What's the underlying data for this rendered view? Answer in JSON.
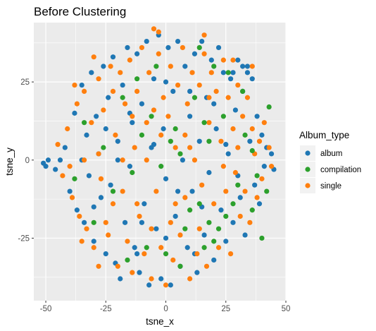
{
  "chart_data": {
    "type": "scatter",
    "title": "Before Clustering",
    "xlabel": "tsne_x",
    "ylabel": "tsne_y",
    "xlim": [
      -55,
      50
    ],
    "ylim": [
      -45,
      44
    ],
    "x_ticks": [
      -50,
      -25,
      0,
      25,
      50
    ],
    "x_tick_labels": [
      "-50",
      "-25",
      "0",
      "25",
      "50"
    ],
    "y_ticks": [
      -25,
      0,
      25
    ],
    "y_tick_labels": [
      "-25",
      "0",
      "25"
    ],
    "grid": true,
    "panel_background": "#ebebeb",
    "gridline_color": "#ffffff",
    "legend": {
      "title": "Album_type",
      "placement": "right",
      "entries": [
        "album",
        "compilation",
        "single"
      ]
    },
    "series": [
      {
        "name": "album",
        "color": "#1f77b4",
        "values": [
          [
            -51,
            -1
          ],
          [
            -50,
            -2
          ],
          [
            -49,
            0
          ],
          [
            -46,
            -3
          ],
          [
            -44,
            0
          ],
          [
            -42,
            4
          ],
          [
            -40,
            -10
          ],
          [
            -38,
            15
          ],
          [
            -37,
            -16
          ],
          [
            -35,
            24
          ],
          [
            -34,
            -20
          ],
          [
            -33,
            8
          ],
          [
            -32,
            -5
          ],
          [
            -31,
            28
          ],
          [
            -30,
            -26
          ],
          [
            -29,
            14
          ],
          [
            -28,
            2
          ],
          [
            -27,
            -12
          ],
          [
            -26,
            30
          ],
          [
            -25,
            -30
          ],
          [
            -24,
            20
          ],
          [
            -23,
            -8
          ],
          [
            -22,
            33
          ],
          [
            -21,
            -33
          ],
          [
            -20,
            6
          ],
          [
            -19,
            -38
          ],
          [
            -18,
            24
          ],
          [
            -17,
            -20
          ],
          [
            -16,
            36
          ],
          [
            -15,
            -2
          ],
          [
            -14,
            12
          ],
          [
            -13,
            -28
          ],
          [
            -12,
            34
          ],
          [
            -11,
            -36
          ],
          [
            -10,
            18
          ],
          [
            -9,
            -14
          ],
          [
            -8,
            38
          ],
          [
            -7,
            -40
          ],
          [
            -6,
            4
          ],
          [
            -5,
            26
          ],
          [
            -4,
            -22
          ],
          [
            -3,
            40
          ],
          [
            -2,
            -38
          ],
          [
            -1,
            10
          ],
          [
            0,
            -6
          ],
          [
            1,
            36
          ],
          [
            2,
            -40
          ],
          [
            3,
            22
          ],
          [
            4,
            -18
          ],
          [
            5,
            38
          ],
          [
            6,
            -34
          ],
          [
            7,
            0
          ],
          [
            8,
            30
          ],
          [
            9,
            -28
          ],
          [
            10,
            14
          ],
          [
            11,
            -10
          ],
          [
            12,
            34
          ],
          [
            13,
            -36
          ],
          [
            14,
            6
          ],
          [
            15,
            38
          ],
          [
            16,
            -24
          ],
          [
            17,
            20
          ],
          [
            18,
            -4
          ],
          [
            19,
            32
          ],
          [
            20,
            -32
          ],
          [
            21,
            10
          ],
          [
            22,
            36
          ],
          [
            23,
            -16
          ],
          [
            24,
            28
          ],
          [
            25,
            -26
          ],
          [
            26,
            2
          ],
          [
            27,
            26
          ],
          [
            28,
            -20
          ],
          [
            29,
            16
          ],
          [
            30,
            32
          ],
          [
            31,
            -12
          ],
          [
            32,
            22
          ],
          [
            33,
            -24
          ],
          [
            34,
            30
          ],
          [
            35,
            6
          ],
          [
            36,
            26
          ],
          [
            37,
            -8
          ],
          [
            38,
            14
          ],
          [
            39,
            -14
          ],
          [
            40,
            8
          ],
          [
            41,
            -2
          ],
          [
            42,
            4
          ],
          [
            44,
            2
          ],
          [
            45,
            -3
          ],
          [
            -20,
            0
          ],
          [
            -15,
            15
          ],
          [
            -10,
            -20
          ],
          [
            -5,
            5
          ],
          [
            5,
            -10
          ],
          [
            10,
            22
          ],
          [
            15,
            -15
          ],
          [
            20,
            18
          ],
          [
            25,
            5
          ],
          [
            30,
            -5
          ],
          [
            -30,
            -15
          ],
          [
            -25,
            10
          ],
          [
            -35,
            0
          ],
          [
            0,
            25
          ],
          [
            0,
            -25
          ],
          [
            -12,
            -30
          ],
          [
            12,
            -30
          ],
          [
            28,
            28
          ],
          [
            32,
            30
          ],
          [
            34,
            28
          ]
        ]
      },
      {
        "name": "compilation",
        "color": "#2ca02c",
        "values": [
          [
            43,
            17
          ],
          [
            40,
            -25
          ],
          [
            38,
            -5
          ],
          [
            36,
            3
          ],
          [
            33,
            8
          ],
          [
            30,
            -8
          ],
          [
            28,
            -14
          ],
          [
            25,
            -18
          ],
          [
            22,
            -22
          ],
          [
            20,
            -26
          ],
          [
            18,
            -20
          ],
          [
            16,
            -28
          ],
          [
            14,
            -14
          ],
          [
            10,
            -16
          ],
          [
            8,
            -22
          ],
          [
            6,
            2
          ],
          [
            4,
            10
          ],
          [
            2,
            6
          ],
          [
            -2,
            -2
          ],
          [
            -6,
            14
          ],
          [
            -10,
            8
          ],
          [
            -14,
            -4
          ],
          [
            -18,
            20
          ],
          [
            -22,
            -10
          ],
          [
            -26,
            4
          ],
          [
            -30,
            -20
          ],
          [
            -34,
            12
          ],
          [
            -38,
            -6
          ],
          [
            12,
            20
          ],
          [
            18,
            6
          ],
          [
            24,
            14
          ],
          [
            32,
            22
          ],
          [
            26,
            28
          ],
          [
            -4,
            30
          ],
          [
            -12,
            26
          ],
          [
            0,
            -30
          ],
          [
            6,
            -34
          ],
          [
            -8,
            -28
          ],
          [
            -16,
            -32
          ],
          [
            14,
            36
          ],
          [
            36,
            -16
          ],
          [
            42,
            -10
          ],
          [
            20,
            30
          ],
          [
            16,
            12
          ]
        ]
      },
      {
        "name": "single",
        "color": "#ff7f0e",
        "values": [
          [
            -45,
            5
          ],
          [
            -43,
            -5
          ],
          [
            -41,
            10
          ],
          [
            -39,
            -12
          ],
          [
            -37,
            18
          ],
          [
            -36,
            -18
          ],
          [
            -34,
            22
          ],
          [
            -33,
            -22
          ],
          [
            -31,
            12
          ],
          [
            -30,
            -28
          ],
          [
            -28,
            26
          ],
          [
            -27,
            -6
          ],
          [
            -26,
            16
          ],
          [
            -24,
            -24
          ],
          [
            -23,
            30
          ],
          [
            -22,
            -14
          ],
          [
            -21,
            8
          ],
          [
            -20,
            -34
          ],
          [
            -19,
            28
          ],
          [
            -18,
            -10
          ],
          [
            -17,
            18
          ],
          [
            -16,
            -26
          ],
          [
            -15,
            32
          ],
          [
            -14,
            -36
          ],
          [
            -13,
            4
          ],
          [
            -12,
            22
          ],
          [
            -11,
            -18
          ],
          [
            -10,
            36
          ],
          [
            -9,
            -30
          ],
          [
            -8,
            12
          ],
          [
            -7,
            28
          ],
          [
            -6,
            -38
          ],
          [
            -5,
            16
          ],
          [
            -4,
            -10
          ],
          [
            -3,
            34
          ],
          [
            -2,
            -28
          ],
          [
            -1,
            20
          ],
          [
            0,
            -40
          ],
          [
            1,
            14
          ],
          [
            2,
            30
          ],
          [
            3,
            -32
          ],
          [
            4,
            4
          ],
          [
            5,
            24
          ],
          [
            6,
            -24
          ],
          [
            7,
            36
          ],
          [
            8,
            -12
          ],
          [
            9,
            18
          ],
          [
            10,
            -38
          ],
          [
            11,
            28
          ],
          [
            12,
            0
          ],
          [
            13,
            -30
          ],
          [
            14,
            24
          ],
          [
            15,
            -8
          ],
          [
            16,
            34
          ],
          [
            17,
            -34
          ],
          [
            18,
            12
          ],
          [
            19,
            28
          ],
          [
            20,
            -14
          ],
          [
            21,
            22
          ],
          [
            22,
            -28
          ],
          [
            23,
            6
          ],
          [
            24,
            32
          ],
          [
            25,
            -10
          ],
          [
            26,
            20
          ],
          [
            27,
            -30
          ],
          [
            28,
            10
          ],
          [
            29,
            -4
          ],
          [
            30,
            24
          ],
          [
            31,
            -18
          ],
          [
            32,
            14
          ],
          [
            33,
            -10
          ],
          [
            34,
            20
          ],
          [
            35,
            -20
          ],
          [
            36,
            10
          ],
          [
            37,
            2
          ],
          [
            38,
            -12
          ],
          [
            39,
            6
          ],
          [
            40,
            -6
          ],
          [
            41,
            12
          ],
          [
            43,
            4
          ],
          [
            44,
            -2
          ],
          [
            -8,
            0
          ],
          [
            -2,
            8
          ],
          [
            4,
            -14
          ],
          [
            10,
            4
          ],
          [
            -14,
            14
          ],
          [
            -22,
            22
          ],
          [
            -28,
            2
          ],
          [
            -34,
            0
          ],
          [
            -40,
            -2
          ],
          [
            -25,
            -20
          ],
          [
            -18,
            0
          ],
          [
            -12,
            -14
          ],
          [
            -6,
            -22
          ],
          [
            2,
            -20
          ],
          [
            8,
            8
          ],
          [
            14,
            -22
          ],
          [
            18,
            20
          ],
          [
            24,
            -2
          ],
          [
            30,
            4
          ],
          [
            -5,
            42
          ],
          [
            -3,
            41
          ],
          [
            -28,
            -34
          ],
          [
            -35,
            -26
          ],
          [
            -38,
            24
          ],
          [
            28,
            32
          ],
          [
            36,
            30
          ],
          [
            -30,
            33
          ],
          [
            16,
            40
          ]
        ]
      }
    ]
  }
}
